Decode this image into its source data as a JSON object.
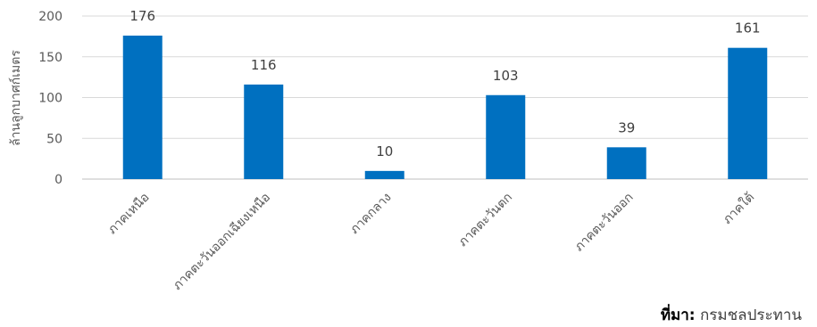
{
  "chart_data": {
    "type": "bar",
    "categories": [
      "ภาคเหนือ",
      "ภาคตะวันออกเฉียงเหนือ",
      "ภาคกลาง",
      "ภาคตะวันตก",
      "ภาคตะวันออก",
      "ภาคใต้"
    ],
    "values": [
      176,
      116,
      10,
      103,
      39,
      161
    ],
    "ylabel": "ล้านลูกบาศก์เมตร",
    "xlabel": "",
    "ylim": [
      0,
      200
    ],
    "yticks": [
      0,
      50,
      100,
      150,
      200
    ],
    "grid": true,
    "bar_color": "#0070C0",
    "data_labels": true
  },
  "source": {
    "label": "ที่มา:",
    "text": "กรมชลประทาน"
  }
}
